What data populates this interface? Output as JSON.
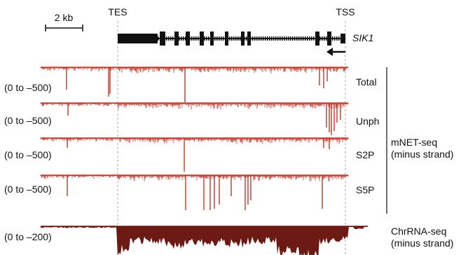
{
  "scale_bar": {
    "label": "2 kb"
  },
  "landmarks": {
    "tes": "TES",
    "tss": "TSS"
  },
  "gene": {
    "name": "SIK1",
    "strand": "minus"
  },
  "tracks": [
    {
      "range": "(0 to –500)",
      "label": "Total",
      "color": "#c0392b"
    },
    {
      "range": "(0 to –500)",
      "label": "Unph",
      "color": "#c0392b"
    },
    {
      "range": "(0 to –500)",
      "label": "S2P",
      "color": "#c0392b"
    },
    {
      "range": "(0 to –500)",
      "label": "S5P",
      "color": "#c0392b"
    },
    {
      "range": "(0 to –200)",
      "label": "",
      "color": "#6e1a14"
    }
  ],
  "group_label": {
    "line1": "mNET-seq",
    "line2": "(minus strand)"
  },
  "chr_label": {
    "line1": "ChrRNA-seq",
    "line2": "(minus strand)"
  }
}
